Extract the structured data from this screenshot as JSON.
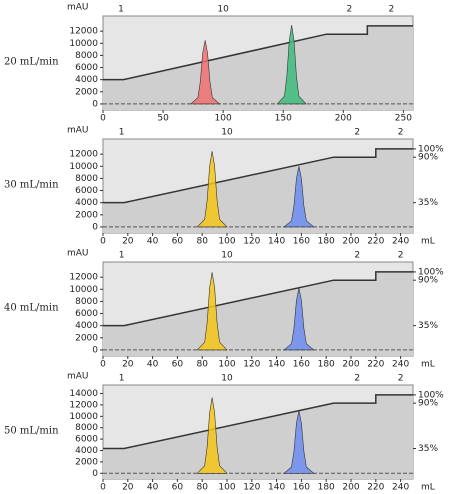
{
  "chart_data": [
    {
      "type": "chromatogram",
      "label": "20 mL/min",
      "y_label": "mAU",
      "xlim": [
        0,
        258
      ],
      "xticks": [
        0,
        50,
        100,
        150,
        200,
        250
      ],
      "ylim": [
        -1000,
        14500
      ],
      "yticks": [
        0,
        2000,
        4000,
        6000,
        8000,
        10000,
        12000
      ],
      "y2lim": [
        -1.7,
        112
      ],
      "markers": [
        {
          "label": "1",
          "x": 15
        },
        {
          "label": "10",
          "x": 100
        },
        {
          "label": "2",
          "x": 205
        },
        {
          "label": "2",
          "x": 240
        }
      ],
      "series": [
        {
          "color": "#f07070",
          "x": [
            73,
            79,
            81,
            83,
            85,
            87,
            89,
            91,
            97
          ],
          "values": [
            0,
            1050,
            3700,
            8400,
            10500,
            8400,
            3700,
            1050,
            0
          ]
        },
        {
          "color": "#3dbb7a",
          "x": [
            145,
            151,
            153,
            155,
            157,
            159,
            161,
            163,
            169
          ],
          "values": [
            0,
            1300,
            4550,
            10400,
            13000,
            10400,
            4550,
            1300,
            0
          ]
        },
        {
          "axis": "y2",
          "color": "#333333",
          "x": [
            0,
            17,
            186,
            220,
            220,
            258
          ],
          "values": [
            35,
            35,
            90,
            90,
            100,
            100
          ]
        }
      ]
    },
    {
      "type": "chromatogram",
      "label": "30 mL/min",
      "y_label": "mAU",
      "x_label": "mL",
      "xlim": [
        0,
        250
      ],
      "xticks": [
        0,
        20,
        40,
        60,
        80,
        100,
        120,
        140,
        160,
        180,
        200,
        220,
        240
      ],
      "ylim": [
        -1000,
        14500
      ],
      "yticks": [
        0,
        2000,
        4000,
        6000,
        8000,
        10000,
        12000
      ],
      "y2lim": [
        -1.7,
        112
      ],
      "y2ticks": [
        {
          "value": 35,
          "label": "35%"
        },
        {
          "value": 90,
          "label": "90%"
        },
        {
          "value": 100,
          "label": "100%"
        }
      ],
      "markers": [
        {
          "label": "1",
          "x": 15
        },
        {
          "label": "10",
          "x": 100
        },
        {
          "label": "2",
          "x": 205
        },
        {
          "label": "2",
          "x": 240
        }
      ],
      "series": [
        {
          "color": "#f5c518",
          "x": [
            76,
            82,
            84,
            86,
            88,
            90,
            92,
            94,
            100
          ],
          "values": [
            0,
            1250,
            4375,
            10000,
            12500,
            10000,
            4375,
            1250,
            0
          ]
        },
        {
          "color": "#6c8cf0",
          "x": [
            146,
            152,
            154,
            156,
            158,
            160,
            162,
            164,
            170
          ],
          "values": [
            0,
            1000,
            3500,
            8000,
            10000,
            8000,
            3500,
            1000,
            0
          ]
        },
        {
          "axis": "y2",
          "color": "#333333",
          "x": [
            0,
            17,
            186,
            220,
            220,
            250
          ],
          "values": [
            35,
            35,
            90,
            90,
            100,
            100
          ]
        }
      ]
    },
    {
      "type": "chromatogram",
      "label": "40 mL/min",
      "y_label": "mAU",
      "x_label": "mL",
      "xlim": [
        0,
        250
      ],
      "xticks": [
        0,
        20,
        40,
        60,
        80,
        100,
        120,
        140,
        160,
        180,
        200,
        220,
        240
      ],
      "ylim": [
        -1000,
        14500
      ],
      "yticks": [
        0,
        2000,
        4000,
        6000,
        8000,
        10000,
        12000
      ],
      "y2lim": [
        -1.7,
        112
      ],
      "y2ticks": [
        {
          "value": 35,
          "label": "35%"
        },
        {
          "value": 90,
          "label": "90%"
        },
        {
          "value": 100,
          "label": "100%"
        }
      ],
      "markers": [
        {
          "label": "1",
          "x": 15
        },
        {
          "label": "10",
          "x": 100
        },
        {
          "label": "2",
          "x": 205
        },
        {
          "label": "2",
          "x": 240
        }
      ],
      "series": [
        {
          "color": "#f5c518",
          "x": [
            76,
            82,
            84,
            86,
            88,
            90,
            92,
            94,
            100
          ],
          "values": [
            0,
            1280,
            4480,
            10240,
            12800,
            10240,
            4480,
            1280,
            0
          ]
        },
        {
          "color": "#6c8cf0",
          "x": [
            146,
            152,
            154,
            156,
            158,
            160,
            162,
            164,
            170
          ],
          "values": [
            0,
            1020,
            3570,
            8160,
            10200,
            8160,
            3570,
            1020,
            0
          ]
        },
        {
          "axis": "y2",
          "color": "#333333",
          "x": [
            0,
            17,
            186,
            220,
            220,
            250
          ],
          "values": [
            35,
            35,
            90,
            90,
            100,
            100
          ]
        }
      ]
    },
    {
      "type": "chromatogram",
      "label": "50 mL/min",
      "y_label": "mAU",
      "x_label": "mL",
      "xlim": [
        0,
        250
      ],
      "xticks": [
        0,
        20,
        40,
        60,
        80,
        100,
        120,
        140,
        160,
        180,
        200,
        220,
        240
      ],
      "ylim": [
        -1000,
        15500
      ],
      "yticks": [
        0,
        2000,
        4000,
        6000,
        8000,
        10000,
        12000,
        14000
      ],
      "y2lim": [
        -2,
        112
      ],
      "y2ticks": [
        {
          "value": 35,
          "label": "35%"
        },
        {
          "value": 90,
          "label": "90%"
        },
        {
          "value": 100,
          "label": "100%"
        }
      ],
      "markers": [
        {
          "label": "1",
          "x": 15
        },
        {
          "label": "10",
          "x": 100
        },
        {
          "label": "2",
          "x": 205
        },
        {
          "label": "2",
          "x": 240
        }
      ],
      "series": [
        {
          "color": "#f5c518",
          "x": [
            76,
            82,
            84,
            86,
            88,
            90,
            92,
            94,
            100
          ],
          "values": [
            0,
            1330,
            4650,
            10640,
            13300,
            10640,
            4650,
            1330,
            0
          ]
        },
        {
          "color": "#6c8cf0",
          "x": [
            146,
            152,
            154,
            156,
            158,
            160,
            162,
            164,
            170
          ],
          "values": [
            0,
            1100,
            3850,
            8800,
            11000,
            8800,
            3850,
            1100,
            0
          ]
        },
        {
          "axis": "y2",
          "color": "#333333",
          "x": [
            0,
            17,
            186,
            220,
            220,
            250
          ],
          "values": [
            35,
            35,
            90,
            90,
            100,
            100
          ]
        }
      ]
    }
  ]
}
